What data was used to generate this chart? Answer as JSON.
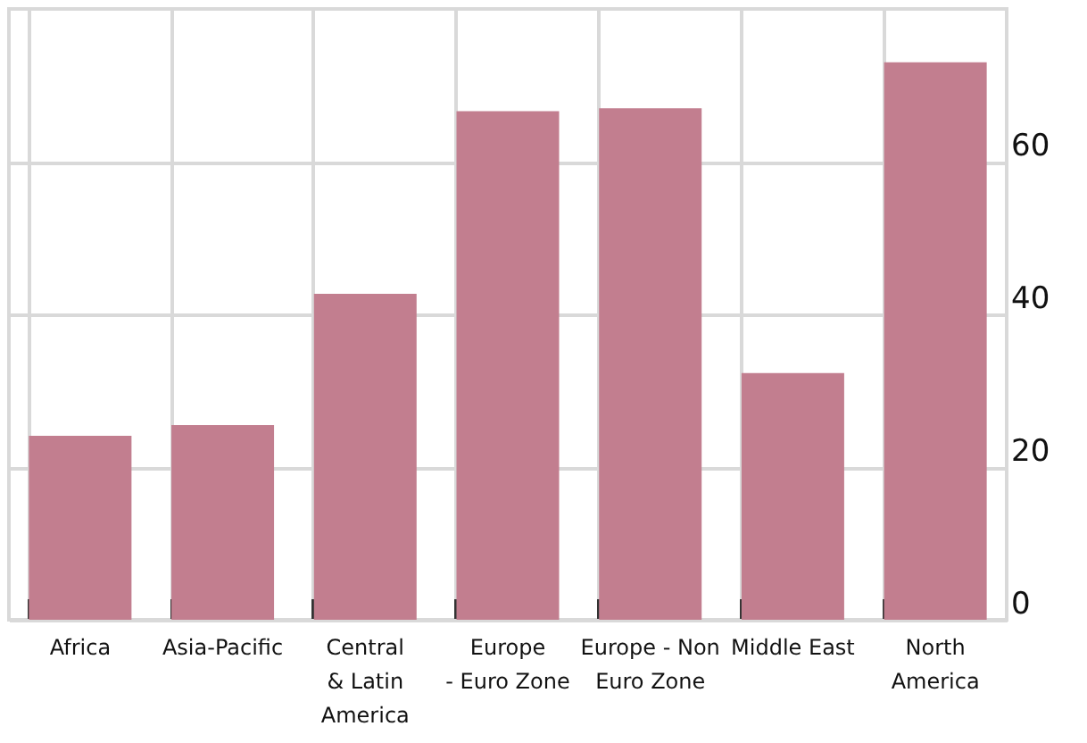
{
  "chart_data": {
    "type": "bar",
    "categories": [
      "Africa",
      "Asia-Pacific",
      "Central & Latin America",
      "Europe - Euro Zone",
      "Europe - Non Euro Zone",
      "Middle East",
      "North America"
    ],
    "values": [
      24.1,
      25.5,
      42.7,
      66.6,
      67.0,
      32.3,
      73.0
    ],
    "color": "#c27e8f",
    "ylim": [
      0,
      80
    ],
    "yticks": [
      0,
      20,
      40,
      60
    ],
    "grid": true
  }
}
